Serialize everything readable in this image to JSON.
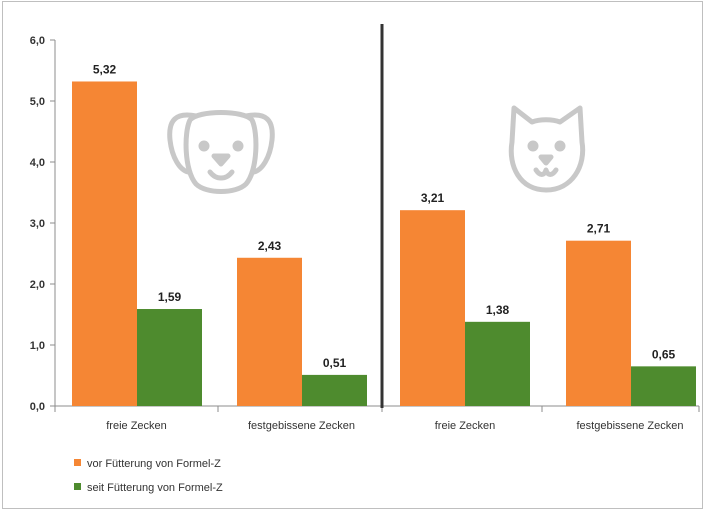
{
  "chart_data": {
    "type": "bar",
    "panels": [
      {
        "animal_icon": "dog-face-icon",
        "categories": [
          "freie Zecken",
          "festgebissene Zecken"
        ]
      },
      {
        "animal_icon": "cat-face-icon",
        "categories": [
          "freie Zecken",
          "festgebissene Zecken"
        ]
      }
    ],
    "series": [
      {
        "name": "vor Fütterung von Formel-Z",
        "color": "#F58634",
        "values": [
          5.32,
          2.43,
          3.21,
          2.71
        ],
        "labels": [
          "5,32",
          "2,43",
          "3,21",
          "2,71"
        ]
      },
      {
        "name": "seit Fütterung von Formel-Z",
        "color": "#4E8B2E",
        "values": [
          1.59,
          0.51,
          1.38,
          0.65
        ],
        "labels": [
          "1,59",
          "0,51",
          "1,38",
          "0,65"
        ]
      }
    ],
    "ylim": [
      0,
      6
    ],
    "yticks": [
      0,
      1,
      2,
      3,
      4,
      5,
      6
    ],
    "ytick_labels": [
      "0,0",
      "1,0",
      "2,0",
      "3,0",
      "4,0",
      "5,0",
      "6,0"
    ],
    "grid": false,
    "legend_position": "bottom-left"
  }
}
